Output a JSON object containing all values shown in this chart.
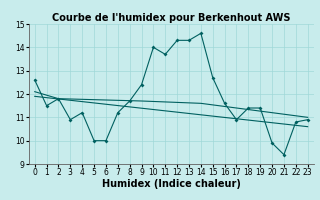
{
  "title": "Courbe de l'humidex pour Berkenhout AWS",
  "xlabel": "Humidex (Indice chaleur)",
  "background_color": "#c8ecec",
  "grid_color": "#a0d8d8",
  "line_color": "#006060",
  "xlim": [
    -0.5,
    23.5
  ],
  "ylim": [
    9,
    15
  ],
  "yticks": [
    9,
    10,
    11,
    12,
    13,
    14,
    15
  ],
  "xticks": [
    0,
    1,
    2,
    3,
    4,
    5,
    6,
    7,
    8,
    9,
    10,
    11,
    12,
    13,
    14,
    15,
    16,
    17,
    18,
    19,
    20,
    21,
    22,
    23
  ],
  "series1_x": [
    0,
    1,
    2,
    3,
    4,
    5,
    6,
    7,
    8,
    9,
    10,
    11,
    12,
    13,
    14,
    15,
    16,
    17,
    18,
    19,
    20,
    21,
    22,
    23
  ],
  "series1_y": [
    12.6,
    11.5,
    11.8,
    10.9,
    11.2,
    10.0,
    10.0,
    11.2,
    11.7,
    12.4,
    14.0,
    13.7,
    14.3,
    14.3,
    14.6,
    12.7,
    11.6,
    10.9,
    11.4,
    11.4,
    9.9,
    9.4,
    10.8,
    10.9
  ],
  "series2_x": [
    0,
    2,
    9,
    14,
    23
  ],
  "series2_y": [
    12.1,
    11.8,
    11.7,
    11.6,
    11.0
  ],
  "series3_x": [
    0,
    23
  ],
  "series3_y": [
    11.9,
    10.6
  ],
  "title_fontsize": 7,
  "axis_fontsize": 7,
  "tick_fontsize": 5.5
}
